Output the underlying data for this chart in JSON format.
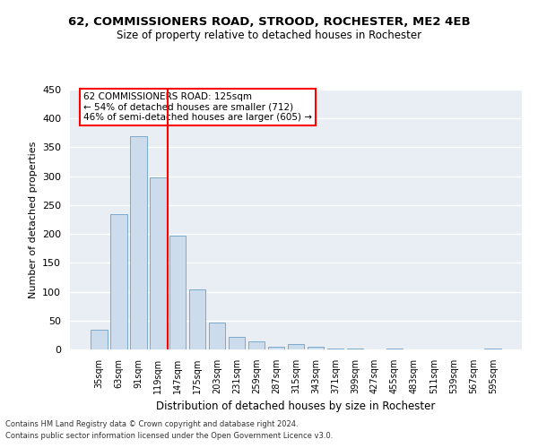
{
  "title": "62, COMMISSIONERS ROAD, STROOD, ROCHESTER, ME2 4EB",
  "subtitle": "Size of property relative to detached houses in Rochester",
  "xlabel": "Distribution of detached houses by size in Rochester",
  "ylabel": "Number of detached properties",
  "bar_color": "#ccdcec",
  "bar_edge_color": "#7aaaca",
  "background_color": "#e8eef4",
  "grid_color": "#ffffff",
  "categories": [
    "35sqm",
    "63sqm",
    "91sqm",
    "119sqm",
    "147sqm",
    "175sqm",
    "203sqm",
    "231sqm",
    "259sqm",
    "287sqm",
    "315sqm",
    "343sqm",
    "371sqm",
    "399sqm",
    "427sqm",
    "455sqm",
    "483sqm",
    "511sqm",
    "539sqm",
    "567sqm",
    "595sqm"
  ],
  "values": [
    34,
    234,
    370,
    298,
    197,
    104,
    47,
    22,
    14,
    4,
    10,
    4,
    1,
    1,
    0,
    1,
    0,
    0,
    0,
    0,
    2
  ],
  "ylim": [
    0,
    450
  ],
  "yticks": [
    0,
    50,
    100,
    150,
    200,
    250,
    300,
    350,
    400,
    450
  ],
  "property_line_x": 3.5,
  "property_line_label": "62 COMMISSIONERS ROAD: 125sqm",
  "annotation_line1": "← 54% of detached houses are smaller (712)",
  "annotation_line2": "46% of semi-detached houses are larger (605) →",
  "footnote1": "Contains HM Land Registry data © Crown copyright and database right 2024.",
  "footnote2": "Contains public sector information licensed under the Open Government Licence v3.0."
}
